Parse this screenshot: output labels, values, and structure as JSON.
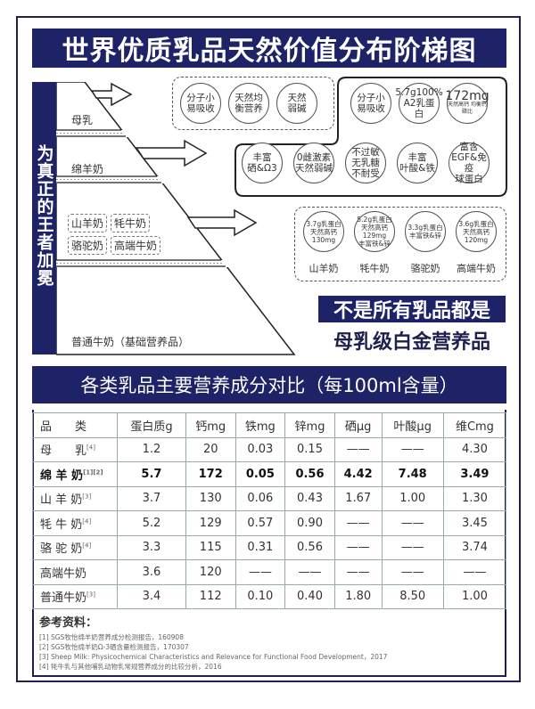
{
  "title": "世界优质乳品天然价值分布阶梯图",
  "side_label": "为真正的王者加冕",
  "tiers": {
    "t1": "母乳",
    "t2": "绵羊奶",
    "t4": "普通牛奶（基础营养品）",
    "t3_tags": [
      "山羊奶",
      "牦牛奶",
      "骆驼奶",
      "高端牛奶"
    ]
  },
  "mother_circles": [
    [
      "分子小",
      "易吸收"
    ],
    [
      "天然均",
      "衡营养"
    ],
    [
      "天然",
      "弱碱"
    ]
  ],
  "sheep_circles_top": [
    [
      "分子小",
      "易吸收"
    ],
    [
      "5.7g100%",
      "A2乳蛋白"
    ],
    [
      "172mg",
      "天然高钙 均衡钙磷比"
    ]
  ],
  "sheep_circles_bottom": [
    [
      "丰富",
      "硒&Ω3"
    ],
    [
      "0雌激素",
      "天然弱碱"
    ],
    [
      "不过敏",
      "无乳糖",
      "不耐受"
    ],
    [
      "丰富",
      "叶酸&铁"
    ],
    [
      "富含",
      "EGF&免疫",
      "球蛋白"
    ]
  ],
  "other_circles": [
    {
      "lines": [
        "3.7g乳蛋白",
        "天然高钙",
        "130mg"
      ],
      "label": "山羊奶"
    },
    {
      "lines": [
        "5.2g乳蛋白",
        "天然高钙129mg",
        "丰富铁&锌"
      ],
      "label": "牦牛奶"
    },
    {
      "lines": [
        "3.3g乳蛋白",
        "丰富铁&锌"
      ],
      "label": "骆驼奶"
    },
    {
      "lines": [
        "3.6g乳蛋白",
        "天然高钙",
        "120mg"
      ],
      "label": "高端牛奶"
    }
  ],
  "banner": {
    "line1": "不是所有乳品都是",
    "line2": "母乳级白金营养品"
  },
  "table_title": "各类乳品主要营养成分对比（每100ml含量）",
  "table": {
    "headers": [
      "品　　类",
      "蛋白质g",
      "钙mg",
      "铁mg",
      "锌mg",
      "硒μg",
      "叶酸μg",
      "维Cmg"
    ],
    "rows": [
      {
        "name": "母　　乳",
        "ref": "[4]",
        "values": [
          "1.2",
          "20",
          "0.03",
          "0.15",
          "——",
          "——",
          "4.30"
        ]
      },
      {
        "name": "绵 羊 奶",
        "ref": "[1][2]",
        "values": [
          "5.7",
          "172",
          "0.05",
          "0.56",
          "4.42",
          "7.48",
          "3.49"
        ],
        "bold": true
      },
      {
        "name": "山 羊 奶",
        "ref": "[3]",
        "values": [
          "3.7",
          "130",
          "0.06",
          "0.43",
          "1.67",
          "1.00",
          "1.30"
        ]
      },
      {
        "name": "牦 牛 奶",
        "ref": "[4]",
        "values": [
          "5.2",
          "129",
          "0.57",
          "0.90",
          "——",
          "——",
          "3.45"
        ]
      },
      {
        "name": "骆 驼 奶",
        "ref": "[4]",
        "values": [
          "3.3",
          "115",
          "0.31",
          "0.56",
          "——",
          "——",
          "3.74"
        ]
      },
      {
        "name": "高端牛奶",
        "ref": "",
        "values": [
          "3.6",
          "120",
          "——",
          "——",
          "——",
          "——",
          "——"
        ]
      },
      {
        "name": "普通牛奶",
        "ref": "[3]",
        "values": [
          "3.4",
          "112",
          "0.10",
          "0.40",
          "1.80",
          "8.50",
          "1.00"
        ]
      }
    ]
  },
  "references": {
    "heading": "参考资料：",
    "items": [
      "[1] SGS牧怡绵羊奶营养成分检测报告，160908",
      "[2] SGS牧怡绵羊奶Ω-3硒含量检测报告，170307",
      "[3] Sheep Milk: Physicochemical Characteristics and Relevance for Functional Food Development，2017",
      "[4] 牦牛乳与其他哺乳动物乳常规营养成分的比较分析，2016"
    ]
  },
  "colors": {
    "navy": "#1e2266"
  }
}
